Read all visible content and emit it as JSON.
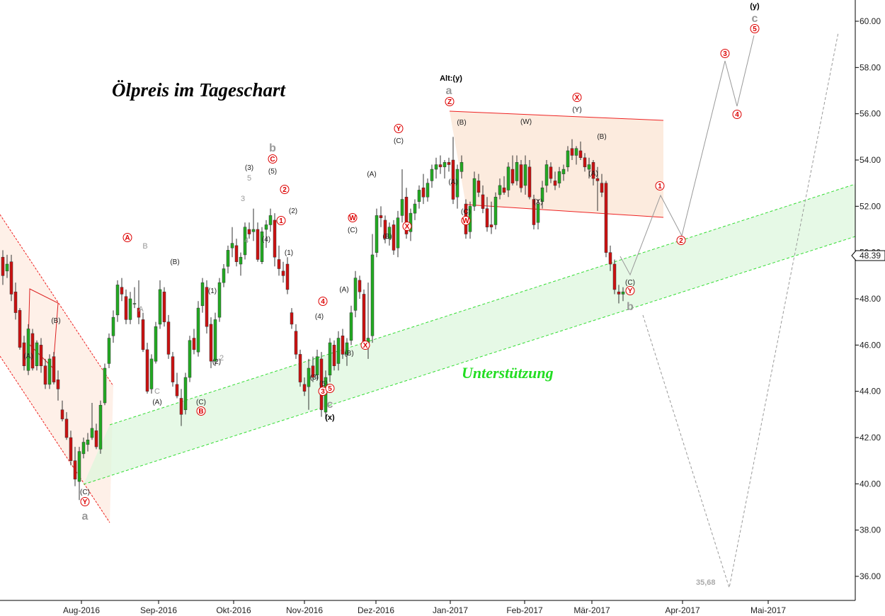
{
  "title": "Ölpreis im Tageschart",
  "support_label": "Unterstützung",
  "target_label": "35,68",
  "price_badge": "48.39",
  "colors": {
    "up": "#22aa22",
    "down": "#cc1111",
    "channel_red": "#ee2222",
    "channel_green": "#33dd33",
    "projection": "#999999"
  },
  "chart_data": {
    "type": "candlestick",
    "title": "Ölpreis im Tageschart",
    "ylim": [
      35,
      61
    ],
    "y_ticks": [
      "36.00",
      "38.00",
      "40.00",
      "42.00",
      "44.00",
      "46.00",
      "48.00",
      "50.00",
      "52.00",
      "54.00",
      "56.00",
      "58.00",
      "60.00"
    ],
    "x_ticks": [
      "Aug-2016",
      "Sep-2016",
      "Okt-2016",
      "Nov-2016",
      "Dez-2016",
      "Jan-2017",
      "Feb-2017",
      "Mär-2017",
      "Apr-2017",
      "Mai-2017"
    ],
    "last_price": 48.39,
    "target": 35.68,
    "candles": [
      {
        "o": 49.8,
        "h": 50.1,
        "l": 48.6,
        "c": 49.0
      },
      {
        "o": 49.2,
        "h": 49.9,
        "l": 48.9,
        "c": 49.5
      },
      {
        "o": 49.6,
        "h": 49.9,
        "l": 47.9,
        "c": 48.2
      },
      {
        "o": 48.3,
        "h": 48.7,
        "l": 47.1,
        "c": 47.4
      },
      {
        "o": 47.5,
        "h": 47.6,
        "l": 45.8,
        "c": 45.9
      },
      {
        "o": 46.1,
        "h": 46.4,
        "l": 44.9,
        "c": 45.1
      },
      {
        "o": 44.9,
        "h": 46.9,
        "l": 44.7,
        "c": 46.7
      },
      {
        "o": 46.5,
        "h": 46.7,
        "l": 44.9,
        "c": 45.0
      },
      {
        "o": 45.1,
        "h": 46.2,
        "l": 44.9,
        "c": 46.1
      },
      {
        "o": 46.0,
        "h": 46.3,
        "l": 44.8,
        "c": 45.1
      },
      {
        "o": 45.1,
        "h": 45.4,
        "l": 44.1,
        "c": 44.3
      },
      {
        "o": 44.3,
        "h": 45.6,
        "l": 44.1,
        "c": 45.4
      },
      {
        "o": 45.5,
        "h": 45.7,
        "l": 44.3,
        "c": 44.4
      },
      {
        "o": 44.5,
        "h": 44.9,
        "l": 43.6,
        "c": 44.1
      },
      {
        "o": 43.2,
        "h": 43.6,
        "l": 42.7,
        "c": 42.8
      },
      {
        "o": 42.8,
        "h": 43.1,
        "l": 41.9,
        "c": 42.0
      },
      {
        "o": 42.0,
        "h": 42.3,
        "l": 40.8,
        "c": 41.0
      },
      {
        "o": 41.0,
        "h": 41.6,
        "l": 39.9,
        "c": 40.2
      },
      {
        "o": 40.1,
        "h": 41.6,
        "l": 39.3,
        "c": 41.4
      },
      {
        "o": 41.3,
        "h": 42.0,
        "l": 41.1,
        "c": 41.8
      },
      {
        "o": 41.7,
        "h": 42.2,
        "l": 41.4,
        "c": 41.9
      },
      {
        "o": 42.0,
        "h": 43.5,
        "l": 41.9,
        "c": 42.4
      },
      {
        "o": 42.3,
        "h": 42.6,
        "l": 41.5,
        "c": 41.6
      },
      {
        "o": 41.5,
        "h": 43.6,
        "l": 41.3,
        "c": 43.4
      },
      {
        "o": 43.5,
        "h": 45.2,
        "l": 43.4,
        "c": 45.0
      },
      {
        "o": 45.2,
        "h": 46.5,
        "l": 45.0,
        "c": 46.3
      },
      {
        "o": 46.4,
        "h": 47.5,
        "l": 46.1,
        "c": 47.2
      },
      {
        "o": 47.3,
        "h": 48.8,
        "l": 47.0,
        "c": 48.6
      },
      {
        "o": 48.5,
        "h": 48.9,
        "l": 47.9,
        "c": 48.2
      },
      {
        "o": 48.1,
        "h": 48.4,
        "l": 46.9,
        "c": 47.1
      },
      {
        "o": 47.1,
        "h": 48.3,
        "l": 46.9,
        "c": 48.0
      },
      {
        "o": 47.8,
        "h": 48.5,
        "l": 47.6,
        "c": 47.8
      },
      {
        "o": 47.6,
        "h": 48.8,
        "l": 46.9,
        "c": 47.2
      },
      {
        "o": 47.1,
        "h": 47.4,
        "l": 45.7,
        "c": 45.8
      },
      {
        "o": 45.8,
        "h": 46.1,
        "l": 43.9,
        "c": 44.0
      },
      {
        "o": 44.1,
        "h": 45.6,
        "l": 43.9,
        "c": 45.4
      },
      {
        "o": 45.3,
        "h": 47.0,
        "l": 45.2,
        "c": 46.8
      },
      {
        "o": 46.9,
        "h": 48.8,
        "l": 46.7,
        "c": 48.4
      },
      {
        "o": 48.3,
        "h": 48.5,
        "l": 46.8,
        "c": 47.0
      },
      {
        "o": 47.0,
        "h": 47.3,
        "l": 45.4,
        "c": 45.6
      },
      {
        "o": 45.5,
        "h": 45.7,
        "l": 44.2,
        "c": 44.4
      },
      {
        "o": 44.3,
        "h": 44.8,
        "l": 43.7,
        "c": 43.8
      },
      {
        "o": 43.7,
        "h": 44.1,
        "l": 42.5,
        "c": 43.0
      },
      {
        "o": 43.2,
        "h": 44.8,
        "l": 43.0,
        "c": 44.6
      },
      {
        "o": 44.6,
        "h": 46.4,
        "l": 44.4,
        "c": 46.2
      },
      {
        "o": 46.3,
        "h": 46.7,
        "l": 45.6,
        "c": 45.8
      },
      {
        "o": 45.7,
        "h": 47.9,
        "l": 45.5,
        "c": 47.6
      },
      {
        "o": 47.7,
        "h": 48.9,
        "l": 47.4,
        "c": 48.7
      },
      {
        "o": 48.5,
        "h": 48.8,
        "l": 46.5,
        "c": 46.8
      },
      {
        "o": 46.9,
        "h": 47.2,
        "l": 45.0,
        "c": 45.3
      },
      {
        "o": 45.3,
        "h": 47.4,
        "l": 45.1,
        "c": 47.1
      },
      {
        "o": 47.2,
        "h": 48.9,
        "l": 47.0,
        "c": 48.7
      },
      {
        "o": 48.7,
        "h": 49.5,
        "l": 48.5,
        "c": 49.3
      },
      {
        "o": 49.4,
        "h": 50.3,
        "l": 49.1,
        "c": 50.1
      },
      {
        "o": 50.2,
        "h": 51.1,
        "l": 49.8,
        "c": 50.4
      },
      {
        "o": 50.3,
        "h": 50.6,
        "l": 49.4,
        "c": 49.6
      },
      {
        "o": 49.5,
        "h": 50.0,
        "l": 49.0,
        "c": 49.8
      },
      {
        "o": 49.9,
        "h": 51.3,
        "l": 49.7,
        "c": 51.1
      },
      {
        "o": 51.0,
        "h": 51.3,
        "l": 50.6,
        "c": 50.8
      },
      {
        "o": 50.9,
        "h": 51.9,
        "l": 50.5,
        "c": 51.0
      },
      {
        "o": 51.0,
        "h": 51.3,
        "l": 49.6,
        "c": 49.7
      },
      {
        "o": 49.6,
        "h": 51.1,
        "l": 49.5,
        "c": 50.9
      },
      {
        "o": 51.0,
        "h": 51.4,
        "l": 50.2,
        "c": 51.2
      },
      {
        "o": 51.2,
        "h": 51.9,
        "l": 50.9,
        "c": 51.6
      },
      {
        "o": 51.4,
        "h": 51.7,
        "l": 49.4,
        "c": 49.8
      },
      {
        "o": 49.7,
        "h": 50.3,
        "l": 49.0,
        "c": 49.3
      },
      {
        "o": 49.2,
        "h": 49.6,
        "l": 48.7,
        "c": 49.0
      },
      {
        "o": 49.5,
        "h": 49.8,
        "l": 48.2,
        "c": 48.4
      },
      {
        "o": 47.4,
        "h": 47.6,
        "l": 46.7,
        "c": 46.9
      },
      {
        "o": 46.6,
        "h": 46.9,
        "l": 45.4,
        "c": 45.6
      },
      {
        "o": 45.6,
        "h": 45.8,
        "l": 44.2,
        "c": 44.4
      },
      {
        "o": 44.3,
        "h": 44.6,
        "l": 43.8,
        "c": 44.0
      },
      {
        "o": 44.2,
        "h": 45.4,
        "l": 43.2,
        "c": 45.0
      },
      {
        "o": 45.1,
        "h": 45.5,
        "l": 44.4,
        "c": 44.6
      },
      {
        "o": 44.7,
        "h": 45.8,
        "l": 44.5,
        "c": 45.5
      },
      {
        "o": 45.4,
        "h": 45.7,
        "l": 42.9,
        "c": 43.2
      },
      {
        "o": 43.1,
        "h": 44.9,
        "l": 42.8,
        "c": 44.6
      },
      {
        "o": 44.7,
        "h": 46.3,
        "l": 44.4,
        "c": 46.1
      },
      {
        "o": 46.0,
        "h": 46.2,
        "l": 44.9,
        "c": 45.1
      },
      {
        "o": 45.2,
        "h": 46.6,
        "l": 44.9,
        "c": 46.3
      },
      {
        "o": 46.4,
        "h": 46.7,
        "l": 45.4,
        "c": 45.6
      },
      {
        "o": 45.6,
        "h": 46.3,
        "l": 45.1,
        "c": 46.1
      },
      {
        "o": 46.2,
        "h": 47.7,
        "l": 46.0,
        "c": 47.4
      },
      {
        "o": 47.5,
        "h": 49.2,
        "l": 47.2,
        "c": 48.9
      },
      {
        "o": 48.8,
        "h": 49.0,
        "l": 48.0,
        "c": 48.3
      },
      {
        "o": 48.2,
        "h": 48.4,
        "l": 45.9,
        "c": 46.1
      },
      {
        "o": 46.1,
        "h": 48.7,
        "l": 45.4,
        "c": 46.3
      },
      {
        "o": 46.4,
        "h": 50.8,
        "l": 46.1,
        "c": 49.9
      },
      {
        "o": 50.0,
        "h": 51.9,
        "l": 49.8,
        "c": 51.6
      },
      {
        "o": 51.6,
        "h": 52.0,
        "l": 51.1,
        "c": 51.5
      },
      {
        "o": 51.4,
        "h": 51.6,
        "l": 50.4,
        "c": 50.6
      },
      {
        "o": 50.6,
        "h": 51.3,
        "l": 50.3,
        "c": 51.1
      },
      {
        "o": 51.2,
        "h": 51.4,
        "l": 49.9,
        "c": 50.1
      },
      {
        "o": 50.2,
        "h": 51.8,
        "l": 49.8,
        "c": 51.5
      },
      {
        "o": 51.6,
        "h": 53.6,
        "l": 51.3,
        "c": 52.3
      },
      {
        "o": 52.4,
        "h": 52.8,
        "l": 50.6,
        "c": 50.8
      },
      {
        "o": 50.9,
        "h": 51.9,
        "l": 50.5,
        "c": 51.7
      },
      {
        "o": 51.7,
        "h": 52.3,
        "l": 51.4,
        "c": 52.1
      },
      {
        "o": 52.2,
        "h": 52.9,
        "l": 51.9,
        "c": 52.7
      },
      {
        "o": 52.8,
        "h": 53.4,
        "l": 52.1,
        "c": 52.4
      },
      {
        "o": 52.4,
        "h": 53.2,
        "l": 52.2,
        "c": 53.0
      },
      {
        "o": 53.1,
        "h": 53.8,
        "l": 52.8,
        "c": 53.6
      },
      {
        "o": 53.6,
        "h": 54.1,
        "l": 53.2,
        "c": 53.8
      },
      {
        "o": 53.8,
        "h": 54.2,
        "l": 53.4,
        "c": 53.7
      },
      {
        "o": 53.7,
        "h": 54.0,
        "l": 53.2,
        "c": 53.9
      },
      {
        "o": 53.9,
        "h": 54.1,
        "l": 53.5,
        "c": 53.8
      },
      {
        "o": 54.0,
        "h": 55.0,
        "l": 52.1,
        "c": 52.3
      },
      {
        "o": 52.4,
        "h": 53.8,
        "l": 51.9,
        "c": 53.6
      },
      {
        "o": 53.5,
        "h": 54.2,
        "l": 53.2,
        "c": 53.9
      },
      {
        "o": 52.1,
        "h": 52.3,
        "l": 50.6,
        "c": 50.8
      },
      {
        "o": 50.9,
        "h": 52.2,
        "l": 50.6,
        "c": 52.0
      },
      {
        "o": 52.0,
        "h": 53.5,
        "l": 51.8,
        "c": 53.2
      },
      {
        "o": 53.1,
        "h": 53.4,
        "l": 52.4,
        "c": 52.6
      },
      {
        "o": 52.5,
        "h": 52.9,
        "l": 51.7,
        "c": 51.9
      },
      {
        "o": 51.9,
        "h": 52.4,
        "l": 50.9,
        "c": 51.1
      },
      {
        "o": 51.2,
        "h": 52.2,
        "l": 50.8,
        "c": 51.1
      },
      {
        "o": 51.2,
        "h": 52.6,
        "l": 51.0,
        "c": 52.4
      },
      {
        "o": 52.5,
        "h": 53.2,
        "l": 52.3,
        "c": 52.9
      },
      {
        "o": 52.8,
        "h": 53.3,
        "l": 52.5,
        "c": 52.6
      },
      {
        "o": 52.7,
        "h": 53.9,
        "l": 52.4,
        "c": 53.7
      },
      {
        "o": 53.6,
        "h": 54.2,
        "l": 52.9,
        "c": 53.0
      },
      {
        "o": 53.1,
        "h": 54.2,
        "l": 52.9,
        "c": 53.9
      },
      {
        "o": 53.8,
        "h": 54.0,
        "l": 52.6,
        "c": 52.8
      },
      {
        "o": 52.9,
        "h": 54.2,
        "l": 52.5,
        "c": 53.8
      },
      {
        "o": 53.7,
        "h": 54.0,
        "l": 52.3,
        "c": 52.4
      },
      {
        "o": 52.3,
        "h": 52.5,
        "l": 51.0,
        "c": 51.2
      },
      {
        "o": 51.3,
        "h": 52.3,
        "l": 51.0,
        "c": 52.1
      },
      {
        "o": 52.2,
        "h": 53.1,
        "l": 51.9,
        "c": 52.8
      },
      {
        "o": 52.9,
        "h": 54.0,
        "l": 52.6,
        "c": 53.8
      },
      {
        "o": 53.7,
        "h": 53.9,
        "l": 53.0,
        "c": 53.2
      },
      {
        "o": 53.1,
        "h": 53.5,
        "l": 52.7,
        "c": 52.9
      },
      {
        "o": 53.0,
        "h": 53.7,
        "l": 52.8,
        "c": 53.5
      },
      {
        "o": 53.4,
        "h": 53.8,
        "l": 53.1,
        "c": 53.6
      },
      {
        "o": 53.7,
        "h": 54.6,
        "l": 53.5,
        "c": 54.4
      },
      {
        "o": 54.5,
        "h": 54.9,
        "l": 54.0,
        "c": 54.2
      },
      {
        "o": 54.2,
        "h": 54.6,
        "l": 53.8,
        "c": 54.5
      },
      {
        "o": 54.4,
        "h": 54.8,
        "l": 54.0,
        "c": 54.1
      },
      {
        "o": 54.1,
        "h": 54.3,
        "l": 53.5,
        "c": 53.7
      },
      {
        "o": 53.6,
        "h": 54.1,
        "l": 53.2,
        "c": 53.8
      },
      {
        "o": 53.9,
        "h": 54.0,
        "l": 52.9,
        "c": 53.2
      },
      {
        "o": 53.2,
        "h": 53.7,
        "l": 51.8,
        "c": 53.1
      },
      {
        "o": 53.0,
        "h": 53.4,
        "l": 52.4,
        "c": 52.6
      },
      {
        "o": 53.0,
        "h": 53.1,
        "l": 49.8,
        "c": 50.0
      },
      {
        "o": 50.0,
        "h": 50.3,
        "l": 49.2,
        "c": 49.5
      },
      {
        "o": 49.5,
        "h": 49.7,
        "l": 48.2,
        "c": 48.4
      },
      {
        "o": 48.3,
        "h": 48.6,
        "l": 47.8,
        "c": 48.2
      },
      {
        "o": 48.2,
        "h": 48.5,
        "l": 47.9,
        "c": 48.3
      }
    ]
  },
  "x_labels": [
    {
      "id": "aug",
      "text": "Aug-2016"
    },
    {
      "id": "sep",
      "text": "Sep-2016"
    },
    {
      "id": "okt",
      "text": "Okt-2016"
    },
    {
      "id": "nov",
      "text": "Nov-2016"
    },
    {
      "id": "dez",
      "text": "Dez-2016"
    },
    {
      "id": "jan",
      "text": "Jan-2017"
    },
    {
      "id": "feb",
      "text": "Feb-2017"
    },
    {
      "id": "mar",
      "text": "Mär-2017"
    },
    {
      "id": "apr",
      "text": "Apr-2017"
    },
    {
      "id": "mai",
      "text": "Mai-2017"
    }
  ],
  "wave_labels": [
    {
      "t": "(A)",
      "s": "lbl"
    },
    {
      "t": "(B)",
      "s": "lbl"
    },
    {
      "t": "(C)",
      "s": "lbl"
    },
    {
      "t": "Y",
      "s": "lbl-r"
    },
    {
      "t": "a",
      "s": "lbl-gb"
    },
    {
      "t": "A",
      "s": "lbl-r"
    },
    {
      "t": "B",
      "s": "lbl-g"
    },
    {
      "t": "A",
      "s": "lbl-g"
    },
    {
      "t": "C",
      "s": "lbl-g"
    },
    {
      "t": "(A)",
      "s": "lbl"
    },
    {
      "t": "(B)",
      "s": "lbl"
    },
    {
      "t": "(C)",
      "s": "lbl"
    },
    {
      "t": "B",
      "s": "lbl-r"
    },
    {
      "t": "(1)",
      "s": "lbl"
    },
    {
      "t": "(2)",
      "s": "lbl"
    },
    {
      "t": "2",
      "s": "lbl-g"
    },
    {
      "t": "(3)",
      "s": "lbl"
    },
    {
      "t": "5",
      "s": "lbl-g"
    },
    {
      "t": "3",
      "s": "lbl-g"
    },
    {
      "t": "4",
      "s": "lbl-g"
    },
    {
      "t": "(4)",
      "s": "lbl"
    },
    {
      "t": "b",
      "s": "lbl-gb"
    },
    {
      "t": "C",
      "s": "lbl-r"
    },
    {
      "t": "(5)",
      "s": "lbl"
    },
    {
      "t": "2",
      "s": "lbl-r"
    },
    {
      "t": "1",
      "s": "lbl-r"
    },
    {
      "t": "(2)",
      "s": "lbl"
    },
    {
      "t": "(1)",
      "s": "lbl"
    },
    {
      "t": "4",
      "s": "lbl-r"
    },
    {
      "t": "(4)",
      "s": "lbl"
    },
    {
      "t": "(3)",
      "s": "lbl"
    },
    {
      "t": "(5)",
      "s": "lbl"
    },
    {
      "t": "3",
      "s": "lbl-r"
    },
    {
      "t": "5",
      "s": "lbl-r"
    },
    {
      "t": "c",
      "s": "lbl-gb"
    },
    {
      "t": "(x)",
      "s": "lbl-b"
    },
    {
      "t": "(A)",
      "s": "lbl"
    },
    {
      "t": "(B)",
      "s": "lbl"
    },
    {
      "t": "W",
      "s": "lbl-r"
    },
    {
      "t": "(C)",
      "s": "lbl"
    },
    {
      "t": "X",
      "s": "lbl-r"
    },
    {
      "t": "(A)",
      "s": "lbl"
    },
    {
      "t": "(B)",
      "s": "lbl"
    },
    {
      "t": "Y",
      "s": "lbl-r"
    },
    {
      "t": "(C)",
      "s": "lbl"
    },
    {
      "t": "X",
      "s": "lbl-r"
    },
    {
      "t": "Alt:(y)",
      "s": "lbl-b"
    },
    {
      "t": "a",
      "s": "lbl-gb"
    },
    {
      "t": "Z",
      "s": "lbl-r"
    },
    {
      "t": "(B)",
      "s": "lbl"
    },
    {
      "t": "(A)",
      "s": "lbl"
    },
    {
      "t": "(C)",
      "s": "lbl"
    },
    {
      "t": "W",
      "s": "lbl-r"
    },
    {
      "t": "(W)",
      "s": "lbl"
    },
    {
      "t": "(X)",
      "s": "lbl"
    },
    {
      "t": "X",
      "s": "lbl-r"
    },
    {
      "t": "(Y)",
      "s": "lbl"
    },
    {
      "t": "(B)",
      "s": "lbl"
    },
    {
      "t": "(A)",
      "s": "lbl"
    },
    {
      "t": "(C)",
      "s": "lbl"
    },
    {
      "t": "Y",
      "s": "lbl-r"
    },
    {
      "t": "b",
      "s": "lbl-gb"
    },
    {
      "t": "1",
      "s": "lbl-r"
    },
    {
      "t": "2",
      "s": "lbl-r"
    },
    {
      "t": "3",
      "s": "lbl-r"
    },
    {
      "t": "4",
      "s": "lbl-r"
    },
    {
      "t": "5",
      "s": "lbl-r"
    },
    {
      "t": "c",
      "s": "lbl-gb"
    },
    {
      "t": "(y)",
      "s": "lbl-b"
    }
  ]
}
